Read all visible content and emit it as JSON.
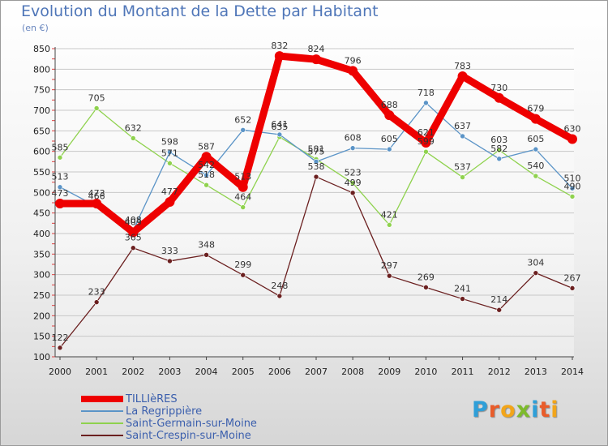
{
  "title": "Evolution du Montant de la Dette par Habitant",
  "subtitle": "(en €)",
  "logo": {
    "letters": [
      "P",
      "r",
      "o",
      "x",
      "i",
      "t",
      "i"
    ],
    "colors": [
      "#2f9fd8",
      "#e95c2a",
      "#f2a51a",
      "#7dbb2c",
      "#2f9fd8",
      "#e95c2a",
      "#f2a51a"
    ]
  },
  "chart_data": {
    "type": "line",
    "title": "Evolution du Montant de la Dette par Habitant",
    "subtitle": "(en €)",
    "xlabel": "",
    "ylabel": "",
    "ylim": [
      100,
      850
    ],
    "y_ticks": [
      100,
      150,
      200,
      250,
      300,
      350,
      400,
      450,
      500,
      550,
      600,
      650,
      700,
      750,
      800,
      850
    ],
    "x": [
      "2000",
      "2001",
      "2002",
      "2003",
      "2004",
      "2005",
      "2006",
      "2007",
      "2008",
      "2009",
      "2010",
      "2011",
      "2012",
      "2013",
      "2014"
    ],
    "grid": "horizontal",
    "legend_position": "bottom-left",
    "series": [
      {
        "name": "TILLIèRES",
        "color": "#ee0000",
        "values": [
          473,
          473,
          403,
          477,
          587,
          513,
          832,
          824,
          796,
          688,
          621,
          783,
          730,
          679,
          630
        ],
        "labels": [
          "473",
          "473",
          "403",
          "477",
          "587",
          "513",
          "832",
          "824",
          "796",
          "688",
          "621",
          "783",
          "730",
          "679",
          "630"
        ]
      },
      {
        "name": "La Regrippière",
        "color": "#5b94c7",
        "values": [
          513,
          466,
          408,
          598,
          542,
          652,
          641,
          575,
          608,
          605,
          718,
          637,
          582,
          605,
          510
        ],
        "labels": [
          "513",
          "466",
          "408",
          "598",
          "542",
          "652",
          "641",
          "575",
          "608",
          "605",
          "718",
          "637",
          "582",
          "605",
          "510"
        ]
      },
      {
        "name": "Saint-Germain-sur-Moine",
        "color": "#8fd24e",
        "values": [
          585,
          705,
          632,
          571,
          518,
          464,
          635,
          581,
          523,
          421,
          599,
          537,
          603,
          540,
          490
        ],
        "labels": [
          "585",
          "705",
          "632",
          "571",
          "518",
          "464",
          "635",
          "581",
          "523",
          "421",
          "599",
          "537",
          "603",
          "540",
          "490"
        ]
      },
      {
        "name": "Saint-Crespin-sur-Moine",
        "color": "#6b2020",
        "values": [
          122,
          233,
          365,
          333,
          348,
          299,
          248,
          538,
          499,
          297,
          269,
          241,
          214,
          304,
          267
        ],
        "labels": [
          "122",
          "233",
          "365",
          "333",
          "348",
          "299",
          "248",
          "538",
          "499",
          "297",
          "269",
          "241",
          "214",
          "304",
          "267"
        ]
      }
    ]
  }
}
